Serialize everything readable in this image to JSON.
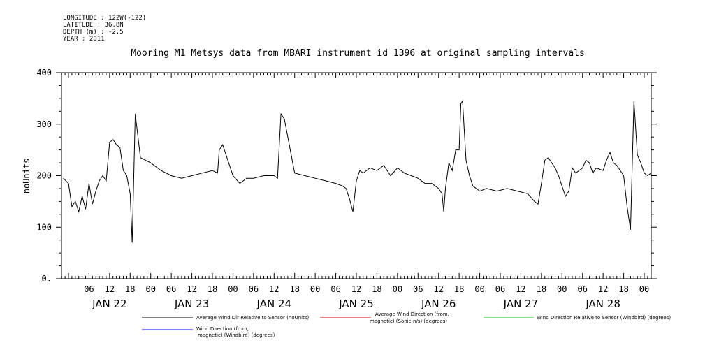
{
  "metadata": [
    "LONGITUDE : 122W(-122)",
    "LATITUDE : 36.8N",
    "DEPTH (m) : -2.5",
    "YEAR : 2011"
  ],
  "chart_data": {
    "type": "line",
    "title": "Mooring M1 Metsys data from MBARI instrument id 1396 at original sampling intervals",
    "ylabel": "noUnits",
    "xlabel": "",
    "ylim": [
      0,
      400
    ],
    "yticks": [
      0,
      100,
      200,
      300,
      400
    ],
    "ytick_labels": [
      "0.",
      "100",
      "200",
      "300",
      "400"
    ],
    "xlim_hours": [
      0,
      168
    ],
    "hour_tick_labels": [
      "06",
      "12",
      "18",
      "00",
      "06",
      "12",
      "18",
      "00",
      "06",
      "12",
      "18",
      "00",
      "06",
      "12",
      "18",
      "00",
      "06",
      "12",
      "18",
      "00",
      "06",
      "12",
      "18",
      "00",
      "06",
      "12",
      "18",
      "00"
    ],
    "day_labels": [
      "JAN 22",
      "JAN 23",
      "JAN 24",
      "JAN 25",
      "JAN 26",
      "JAN 27",
      "JAN 28"
    ],
    "grid": false,
    "legend_position": "bottom",
    "series": [
      {
        "name": "Average Wind Dir Relative to Sensor (noUnits)",
        "color": "#000000",
        "points": [
          [
            -1.5,
            195
          ],
          [
            0,
            185
          ],
          [
            1,
            140
          ],
          [
            2,
            150
          ],
          [
            3,
            130
          ],
          [
            4,
            160
          ],
          [
            5,
            135
          ],
          [
            6,
            185
          ],
          [
            7,
            145
          ],
          [
            8,
            170
          ],
          [
            9,
            190
          ],
          [
            10,
            200
          ],
          [
            11,
            190
          ],
          [
            12,
            265
          ],
          [
            13,
            270
          ],
          [
            14,
            260
          ],
          [
            15,
            255
          ],
          [
            16,
            210
          ],
          [
            17,
            200
          ],
          [
            18,
            165
          ],
          [
            18.6,
            70
          ],
          [
            19.5,
            320
          ],
          [
            21,
            235
          ],
          [
            24,
            225
          ],
          [
            27,
            210
          ],
          [
            30,
            200
          ],
          [
            33,
            195
          ],
          [
            36,
            200
          ],
          [
            39,
            205
          ],
          [
            42,
            210
          ],
          [
            43.5,
            205
          ],
          [
            44,
            250
          ],
          [
            45,
            260
          ],
          [
            46,
            240
          ],
          [
            47,
            220
          ],
          [
            48,
            200
          ],
          [
            50,
            185
          ],
          [
            52,
            195
          ],
          [
            54,
            195
          ],
          [
            57,
            200
          ],
          [
            60,
            200
          ],
          [
            61,
            195
          ],
          [
            62,
            320
          ],
          [
            63,
            310
          ],
          [
            66,
            205
          ],
          [
            69,
            200
          ],
          [
            72,
            195
          ],
          [
            75,
            190
          ],
          [
            78,
            185
          ],
          [
            80,
            180
          ],
          [
            81,
            175
          ],
          [
            82,
            155
          ],
          [
            83,
            130
          ],
          [
            84,
            190
          ],
          [
            85,
            210
          ],
          [
            86,
            205
          ],
          [
            88,
            215
          ],
          [
            90,
            210
          ],
          [
            92,
            220
          ],
          [
            94,
            200
          ],
          [
            96,
            215
          ],
          [
            98,
            205
          ],
          [
            100,
            200
          ],
          [
            102,
            195
          ],
          [
            104,
            185
          ],
          [
            106,
            185
          ],
          [
            108,
            175
          ],
          [
            109,
            165
          ],
          [
            109.5,
            130
          ],
          [
            110,
            175
          ],
          [
            111,
            225
          ],
          [
            112,
            210
          ],
          [
            113,
            250
          ],
          [
            114,
            250
          ],
          [
            114.5,
            340
          ],
          [
            115,
            345
          ],
          [
            116,
            230
          ],
          [
            117,
            200
          ],
          [
            118,
            180
          ],
          [
            120,
            170
          ],
          [
            122,
            175
          ],
          [
            125,
            170
          ],
          [
            128,
            175
          ],
          [
            131,
            170
          ],
          [
            134,
            165
          ],
          [
            136,
            150
          ],
          [
            137,
            145
          ],
          [
            138,
            185
          ],
          [
            139,
            230
          ],
          [
            140,
            235
          ],
          [
            141,
            225
          ],
          [
            142,
            215
          ],
          [
            143,
            200
          ],
          [
            144,
            180
          ],
          [
            145,
            160
          ],
          [
            146,
            170
          ],
          [
            147,
            215
          ],
          [
            148,
            205
          ],
          [
            149,
            210
          ],
          [
            150,
            215
          ],
          [
            151,
            230
          ],
          [
            152,
            225
          ],
          [
            153,
            205
          ],
          [
            154,
            215
          ],
          [
            156,
            210
          ],
          [
            157,
            230
          ],
          [
            158,
            245
          ],
          [
            159,
            225
          ],
          [
            160,
            220
          ],
          [
            162,
            200
          ],
          [
            163,
            140
          ],
          [
            164,
            95
          ],
          [
            165,
            345
          ],
          [
            166,
            240
          ],
          [
            167,
            225
          ],
          [
            168,
            205
          ],
          [
            169,
            200
          ],
          [
            170,
            205
          ]
        ],
        "gaps": [],
        "note": "values read from chart"
      }
    ]
  },
  "legend": {
    "series_labels": [
      "Average Wind Dir Relative to Sensor (noUnits)",
      "Average Wind Direction (from,",
      "magnetic) (Sonic-n/s) (degrees)",
      "Wind Direction Relative to Sensor (Windbird) (degrees)",
      "Wind Direction (from,",
      "magnetic) (Windbird) (degrees)"
    ]
  }
}
